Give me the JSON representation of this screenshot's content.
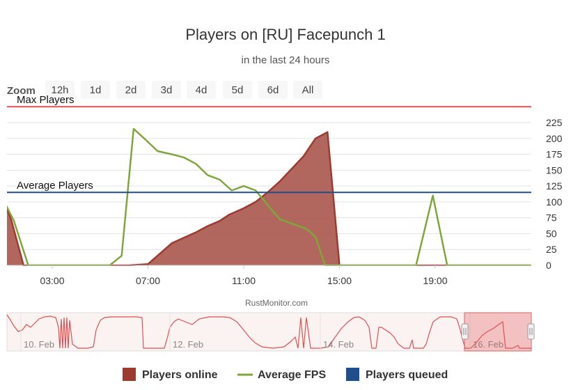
{
  "chart_data": {
    "type": "area",
    "title": "Players on [RU] Facepunch 1",
    "subtitle": "in the last 24 hours",
    "credits": "RustMonitor.com",
    "zoom": {
      "label": "Zoom",
      "buttons": [
        "12h",
        "1d",
        "2d",
        "3d",
        "4d",
        "5d",
        "6d",
        "All"
      ]
    },
    "x_ticks": [
      "03:00",
      "07:00",
      "11:00",
      "15:00",
      "19:00"
    ],
    "y_ticks": [
      "225",
      "200",
      "175",
      "150",
      "125",
      "100",
      "75",
      "50",
      "25",
      "0"
    ],
    "ylim": [
      0,
      225
    ],
    "xlim": [
      1.0,
      23.0
    ],
    "grid": true,
    "plot_lines": [
      {
        "label": "Max Players",
        "value": 250,
        "color": "#e05050"
      },
      {
        "label": "Average Players",
        "value": 115,
        "color": "#1f4e8c"
      }
    ],
    "series": [
      {
        "name": "Players online",
        "type": "area",
        "color": "#9c3b30",
        "fill": "#a8564c",
        "x": [
          1.0,
          1.3,
          1.8,
          5.5,
          6.2,
          7.0,
          8.0,
          9.0,
          9.5,
          10.0,
          10.4,
          11.0,
          11.5,
          12.0,
          12.5,
          13.0,
          13.5,
          14.0,
          14.5,
          15.0,
          15.5,
          18.6,
          19.0,
          19.5,
          23.0
        ],
        "y": [
          100,
          70,
          0,
          0,
          0,
          2,
          35,
          52,
          62,
          70,
          80,
          90,
          100,
          115,
          132,
          152,
          172,
          200,
          210,
          0,
          0,
          0,
          0,
          0,
          0
        ]
      },
      {
        "name": "Average FPS",
        "type": "line",
        "color": "#7ea63a",
        "x": [
          1.0,
          1.4,
          2.0,
          5.0,
          5.4,
          5.9,
          6.4,
          6.9,
          7.4,
          8.0,
          8.5,
          9.0,
          9.5,
          10.0,
          10.5,
          11.0,
          11.5,
          12.0,
          12.5,
          13.0,
          13.6,
          14.0,
          14.4,
          17.0,
          18.2,
          18.9,
          19.5,
          23.0
        ],
        "y": [
          100,
          70,
          0,
          0,
          0,
          15,
          215,
          198,
          180,
          175,
          170,
          160,
          142,
          135,
          118,
          125,
          118,
          95,
          73,
          66,
          58,
          45,
          0,
          0,
          0,
          110,
          0,
          0
        ]
      },
      {
        "name": "Players queued",
        "type": "line",
        "color": "#1f4e8c",
        "x": [],
        "y": []
      }
    ],
    "navigator": {
      "labels": [
        "10. Feb",
        "12. Feb",
        "14. Feb",
        "16. Feb"
      ]
    },
    "legend_position": "bottom"
  }
}
